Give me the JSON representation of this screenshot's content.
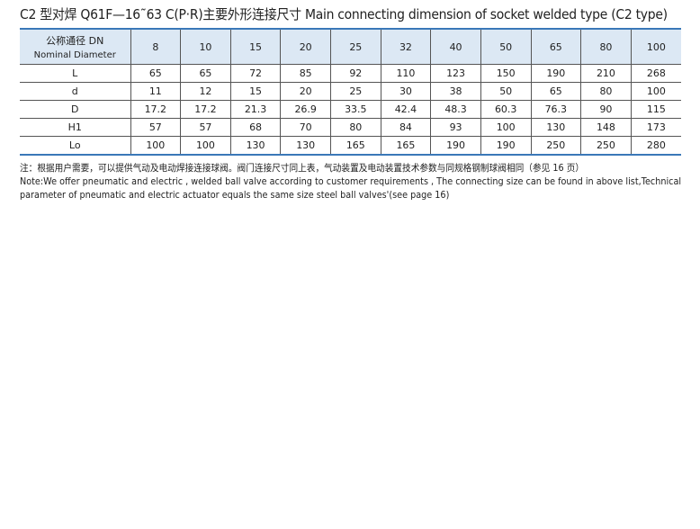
{
  "title": "C2 型对焊 Q61F—16˜63  C(P·R)主要外形连接尺寸 Main connecting dimension of socket welded type (C2 type)",
  "table": {
    "header_cn": "公称通径 DN",
    "header_en": "Nominal Diameter",
    "dn": [
      "8",
      "10",
      "15",
      "20",
      "25",
      "32",
      "40",
      "50",
      "65",
      "80",
      "100"
    ],
    "rows": [
      {
        "label": "L",
        "values": [
          "65",
          "65",
          "72",
          "85",
          "92",
          "110",
          "123",
          "150",
          "190",
          "210",
          "268"
        ]
      },
      {
        "label": "d",
        "values": [
          "11",
          "12",
          "15",
          "20",
          "25",
          "30",
          "38",
          "50",
          "65",
          "80",
          "100"
        ]
      },
      {
        "label": "D",
        "values": [
          "17.2",
          "17.2",
          "21.3",
          "26.9",
          "33.5",
          "42.4",
          "48.3",
          "60.3",
          "76.3",
          "90",
          "115"
        ]
      },
      {
        "label": "H1",
        "values": [
          "57",
          "57",
          "68",
          "70",
          "80",
          "84",
          "93",
          "100",
          "130",
          "148",
          "173"
        ]
      },
      {
        "label": "Lo",
        "values": [
          "100",
          "100",
          "130",
          "130",
          "165",
          "165",
          "190",
          "190",
          "250",
          "250",
          "280"
        ]
      }
    ]
  },
  "note": {
    "cn": "注：根据用户需要，可以提供气动及电动焊接连接球阀。阀门连接尺寸同上表，气动装置及电动装置技术参数与同规格钢制球阀相同（参见 16 页）",
    "en1": "Note:We offer pneumatic and electric , welded ball valve according to customer requirements , The connecting size can be found in above list,Technical",
    "en2": "parameter of pneumatic and electric actuator equals the same size steel ball valves'(see page 16)"
  },
  "colors": {
    "rule": "#3a78b8",
    "header_bg": "#dce8f4"
  }
}
